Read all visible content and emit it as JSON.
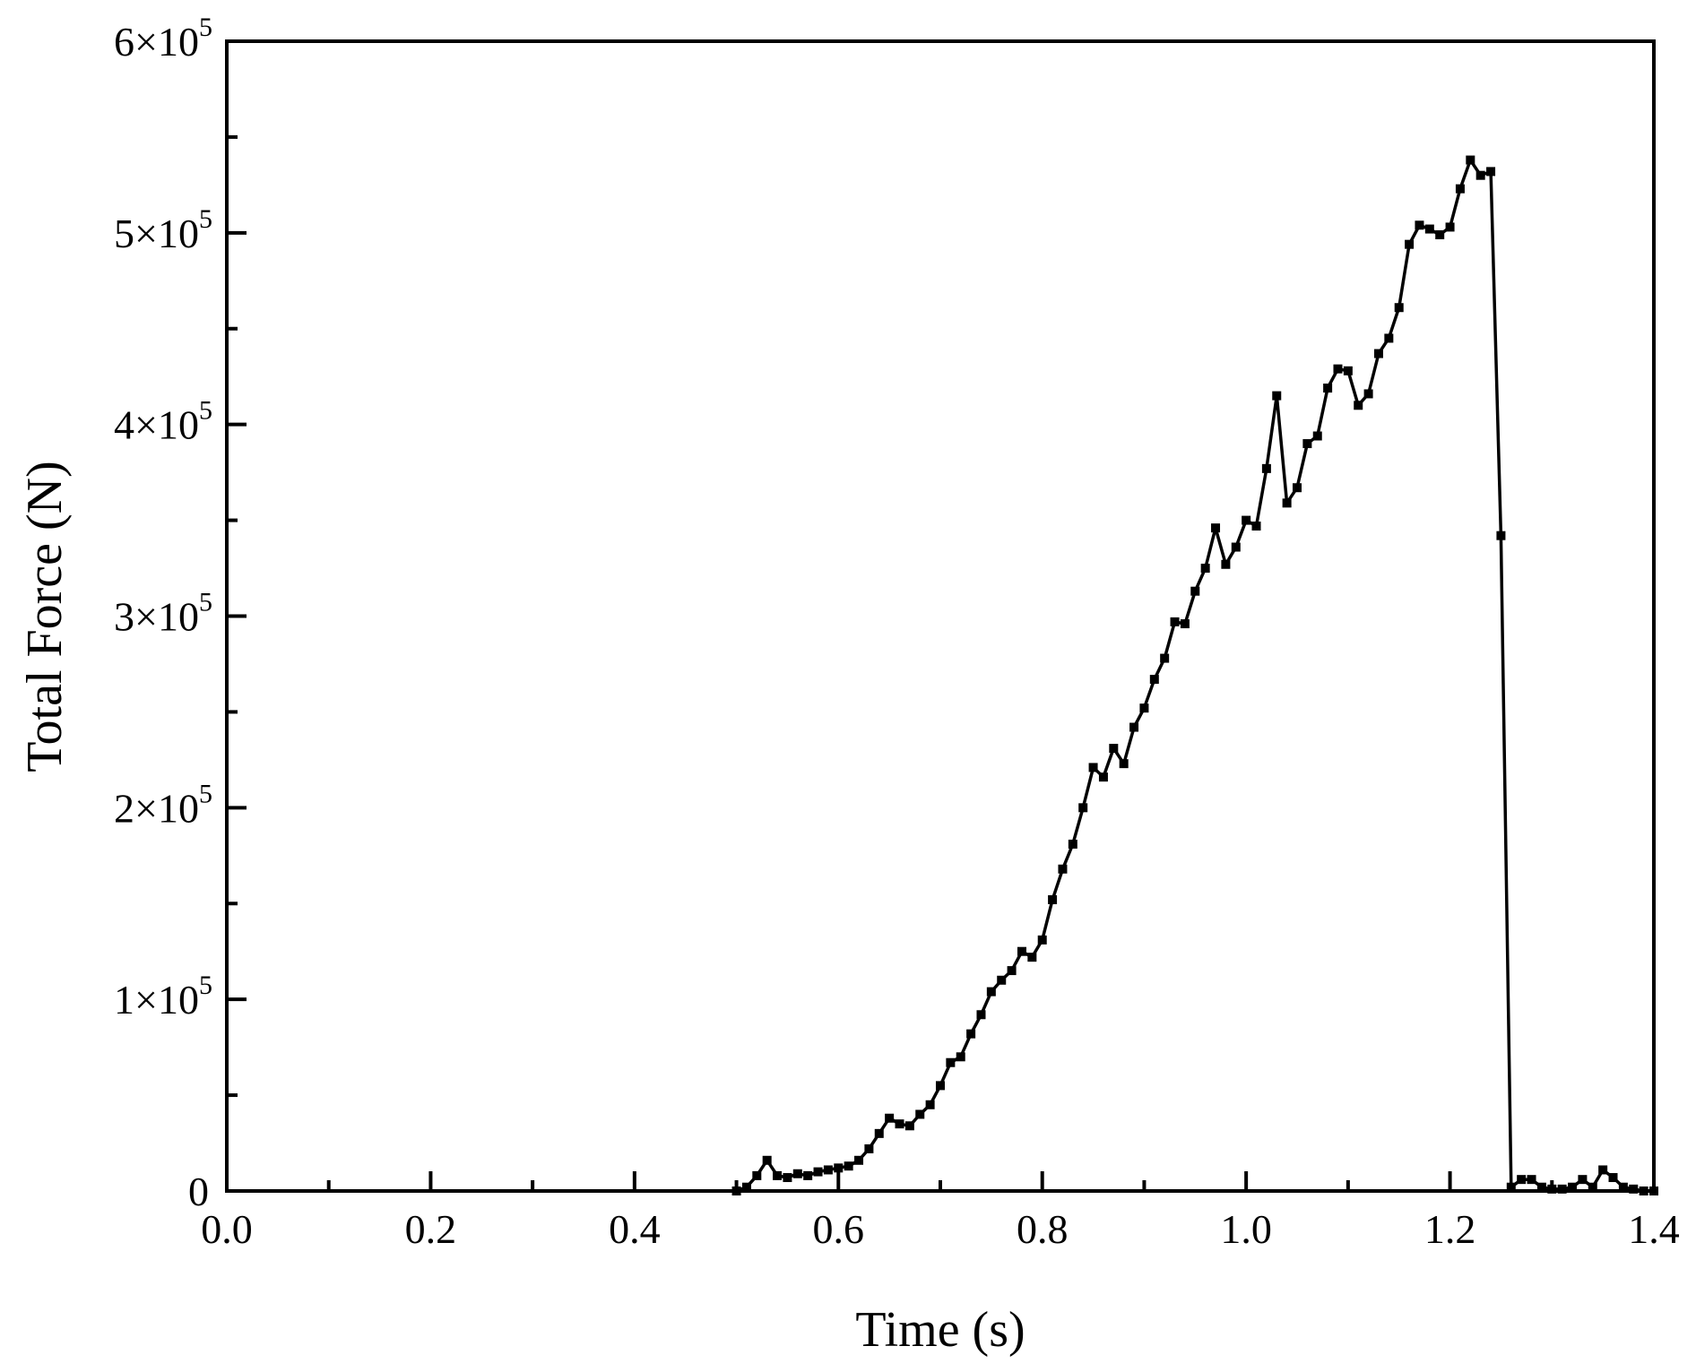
{
  "chart_data": {
    "type": "line",
    "title": "",
    "xlabel": "Time (s)",
    "ylabel": "Total Force (N)",
    "xlim": [
      0,
      1.4
    ],
    "ylim": [
      0,
      600000
    ],
    "grid": false,
    "legend": false,
    "line_color": "#000000",
    "marker": "square",
    "x_ticks": [
      {
        "value": 0.0,
        "label": "0.0"
      },
      {
        "value": 0.2,
        "label": "0.2"
      },
      {
        "value": 0.4,
        "label": "0.4"
      },
      {
        "value": 0.6,
        "label": "0.6"
      },
      {
        "value": 0.8,
        "label": "0.8"
      },
      {
        "value": 1.0,
        "label": "1.0"
      },
      {
        "value": 1.2,
        "label": "1.2"
      },
      {
        "value": 1.4,
        "label": "1.4"
      }
    ],
    "x_minor_ticks": [
      0.1,
      0.3,
      0.5,
      0.7,
      0.9,
      1.1,
      1.3
    ],
    "y_ticks": [
      {
        "value": 0,
        "label": "0"
      },
      {
        "value": 100000,
        "mantissa": "1×10",
        "exponent": "5"
      },
      {
        "value": 200000,
        "mantissa": "2×10",
        "exponent": "5"
      },
      {
        "value": 300000,
        "mantissa": "3×10",
        "exponent": "5"
      },
      {
        "value": 400000,
        "mantissa": "4×10",
        "exponent": "5"
      },
      {
        "value": 500000,
        "mantissa": "5×10",
        "exponent": "5"
      },
      {
        "value": 600000,
        "mantissa": "6×10",
        "exponent": "5"
      }
    ],
    "y_minor_ticks": [
      50000,
      150000,
      250000,
      350000,
      450000,
      550000
    ],
    "series": [
      {
        "x": [
          0.5,
          0.51,
          0.52,
          0.53,
          0.54,
          0.55,
          0.56,
          0.57,
          0.58,
          0.59,
          0.6,
          0.61,
          0.62,
          0.63,
          0.64,
          0.65,
          0.66,
          0.67,
          0.68,
          0.69,
          0.7,
          0.71,
          0.72,
          0.73,
          0.74,
          0.75,
          0.76,
          0.77,
          0.78,
          0.79,
          0.8,
          0.81,
          0.82,
          0.83,
          0.84,
          0.85,
          0.86,
          0.87,
          0.88,
          0.89,
          0.9,
          0.91,
          0.92,
          0.93,
          0.94,
          0.95,
          0.96,
          0.97,
          0.98,
          0.99,
          1.0,
          1.01,
          1.02,
          1.03,
          1.04,
          1.05,
          1.06,
          1.07,
          1.08,
          1.09,
          1.1,
          1.11,
          1.12,
          1.13,
          1.14,
          1.15,
          1.16,
          1.17,
          1.18,
          1.19,
          1.2,
          1.21,
          1.22,
          1.23,
          1.24,
          1.25,
          1.26,
          1.27,
          1.28,
          1.29,
          1.3,
          1.31,
          1.32,
          1.33,
          1.34,
          1.35,
          1.36,
          1.37,
          1.38,
          1.39,
          1.4
        ],
        "y": [
          0,
          2000,
          8000,
          16000,
          8000,
          7000,
          9000,
          8000,
          10000,
          11000,
          12000,
          13000,
          16000,
          22000,
          30000,
          38000,
          35000,
          34000,
          40000,
          45000,
          55000,
          67000,
          70000,
          82000,
          92000,
          104000,
          110000,
          115000,
          125000,
          122000,
          131000,
          152000,
          168000,
          181000,
          200000,
          221000,
          216000,
          231000,
          223000,
          242000,
          252000,
          267000,
          278000,
          297000,
          296000,
          313000,
          325000,
          346000,
          327000,
          336000,
          350000,
          347000,
          377000,
          415000,
          359000,
          367000,
          390000,
          394000,
          419000,
          429000,
          428000,
          410000,
          416000,
          437000,
          445000,
          461000,
          494000,
          504000,
          502000,
          499000,
          503000,
          523000,
          538000,
          530000,
          532000,
          342000,
          2000,
          6000,
          6000,
          2000,
          1000,
          1000,
          2000,
          6000,
          2000,
          11000,
          7000,
          2000,
          1000,
          0,
          0
        ]
      }
    ]
  }
}
